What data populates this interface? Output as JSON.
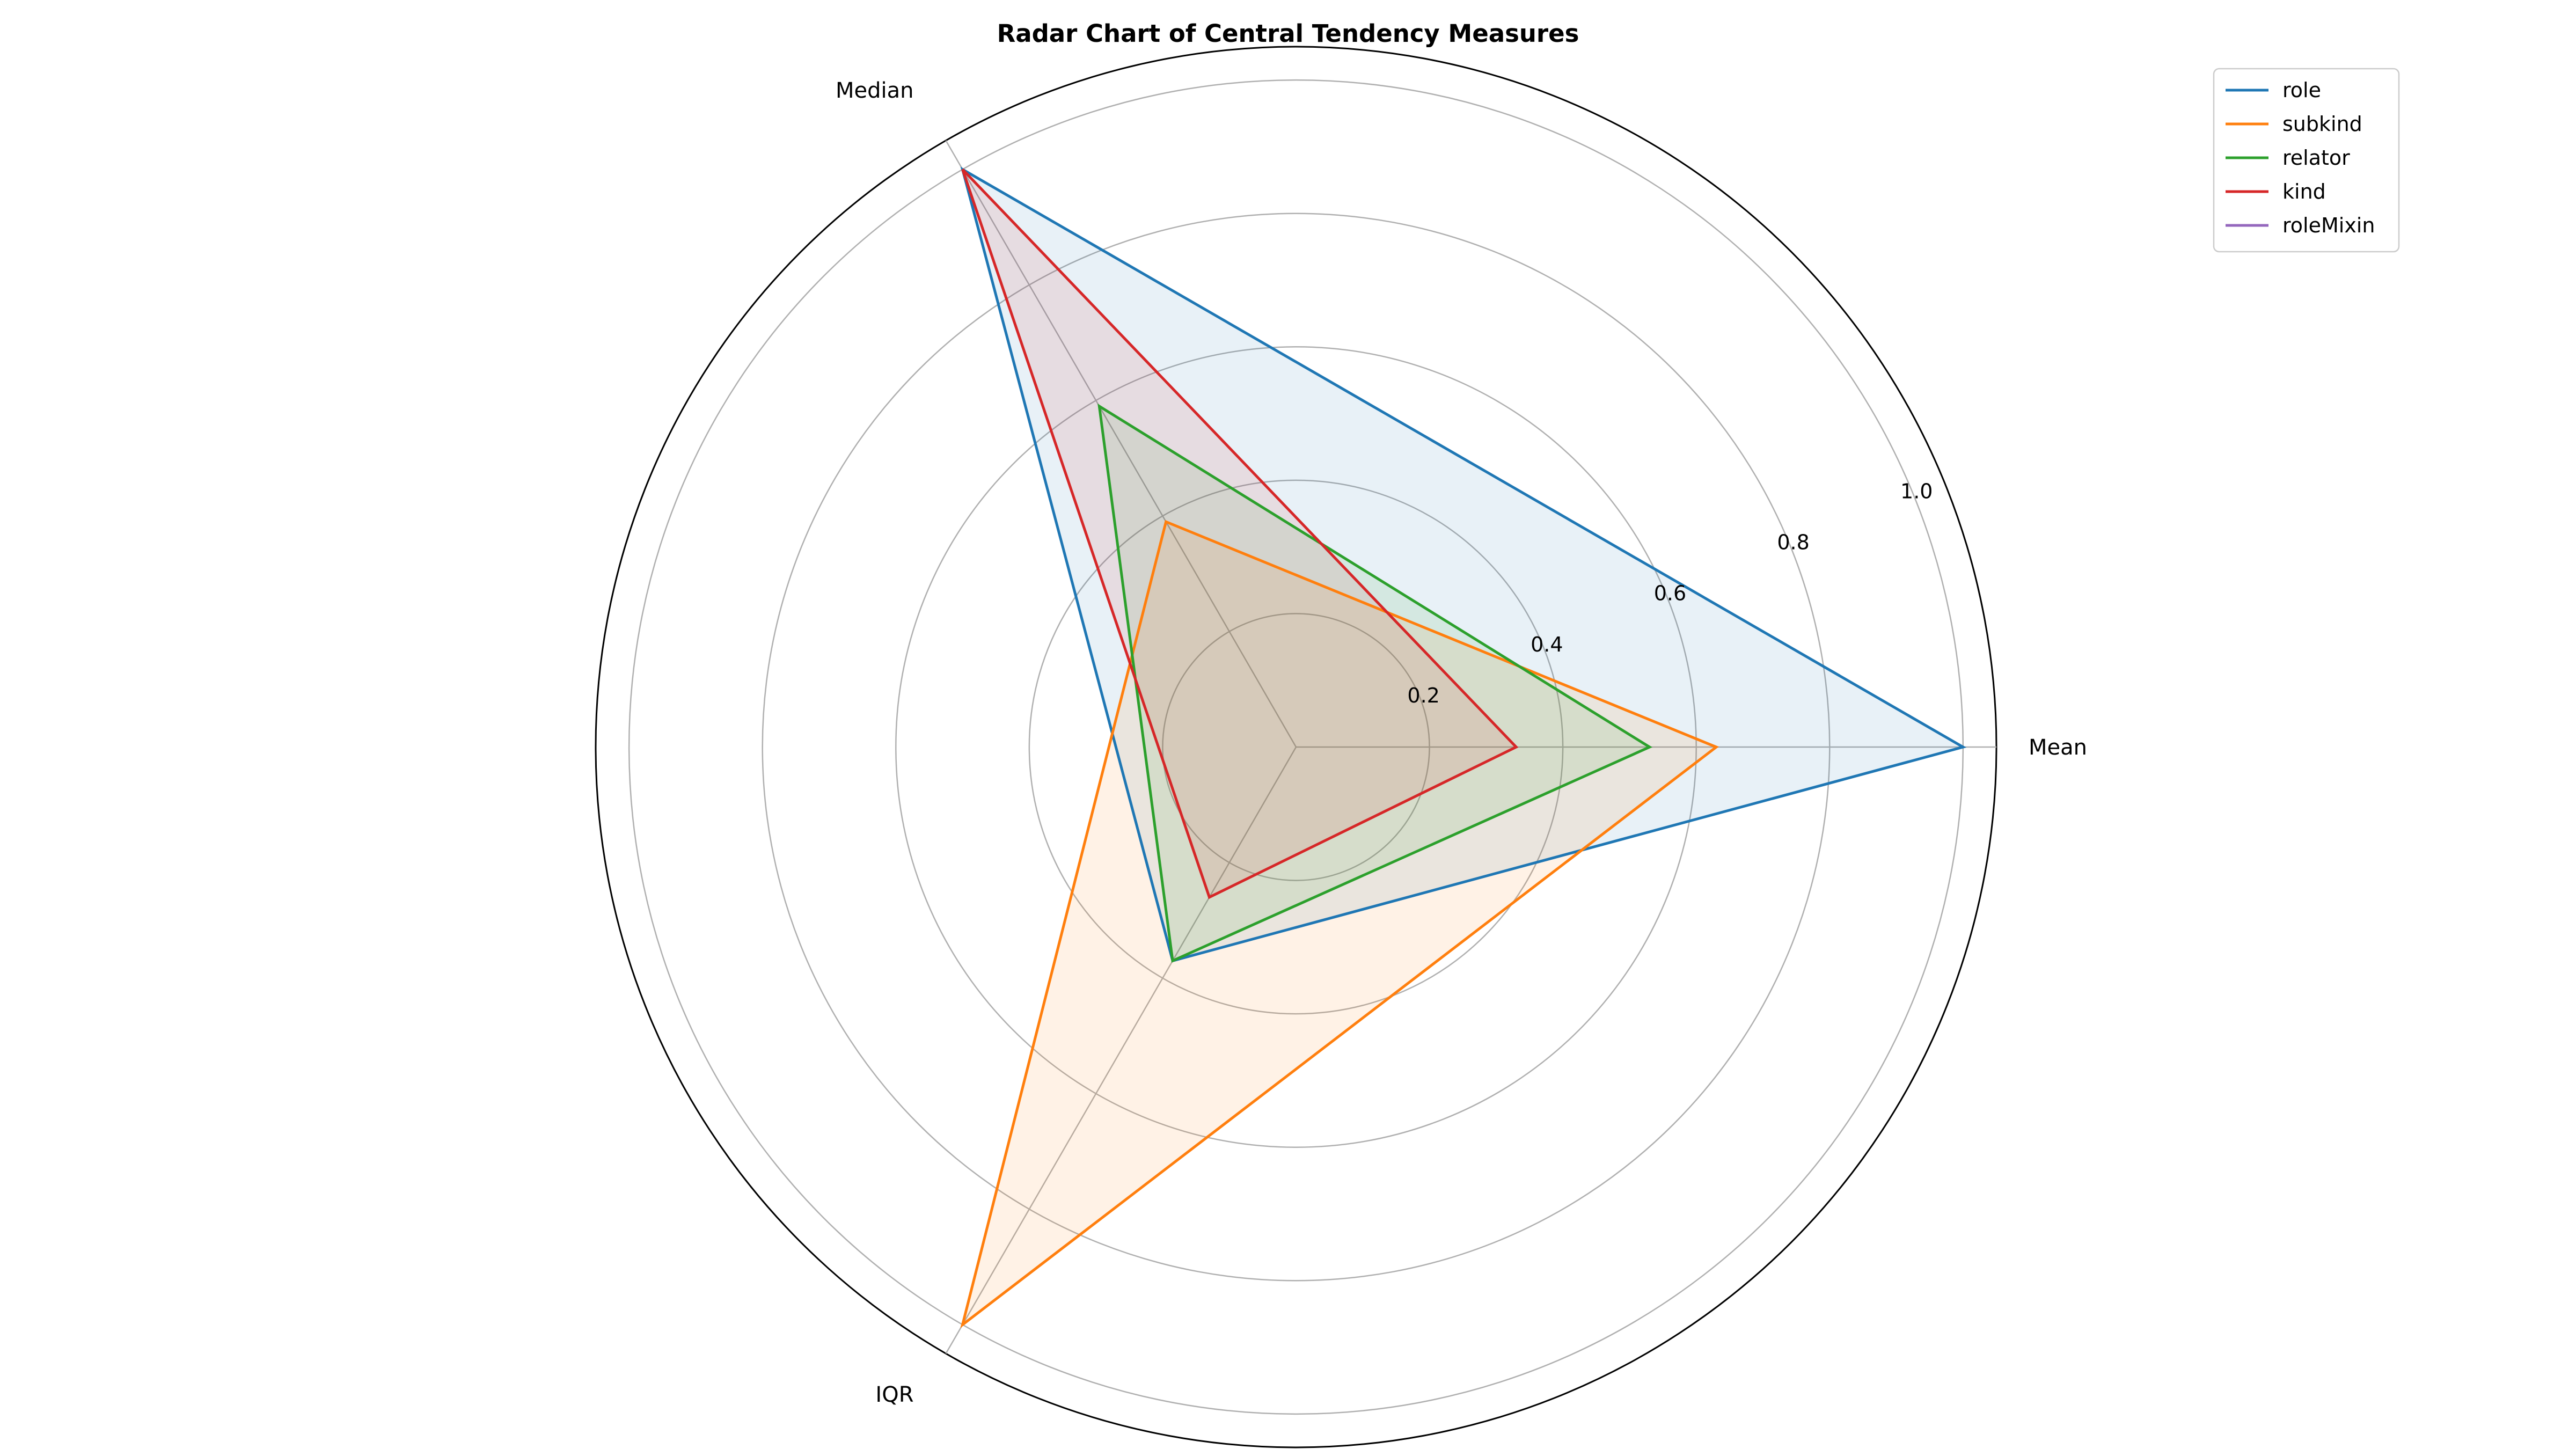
{
  "chart_data": {
    "type": "radar",
    "title": "Radar Chart of Central Tendency Measures",
    "axes": [
      "Mean",
      "Median",
      "IQR"
    ],
    "rlim": [
      0,
      1.05
    ],
    "rticks": [
      "0.2",
      "0.4",
      "0.6",
      "0.8",
      "1.0"
    ],
    "rtick_values": [
      0.2,
      0.4,
      0.6,
      0.8,
      1.0
    ],
    "grid": true,
    "legend_position": "top-right",
    "series": [
      {
        "name": "role",
        "color": "#1f77b4",
        "values": [
          1.0,
          1.0,
          0.37
        ],
        "filled": true
      },
      {
        "name": "subkind",
        "color": "#ff7f0e",
        "values": [
          0.63,
          0.39,
          1.0
        ],
        "filled": true
      },
      {
        "name": "relator",
        "color": "#2ca02c",
        "values": [
          0.53,
          0.59,
          0.37
        ],
        "filled": true
      },
      {
        "name": "kind",
        "color": "#d62728",
        "values": [
          0.33,
          1.0,
          0.26
        ],
        "filled": true
      },
      {
        "name": "roleMixin",
        "color": "#9467bd",
        "values": [
          0,
          0,
          0
        ],
        "filled": false
      }
    ]
  }
}
